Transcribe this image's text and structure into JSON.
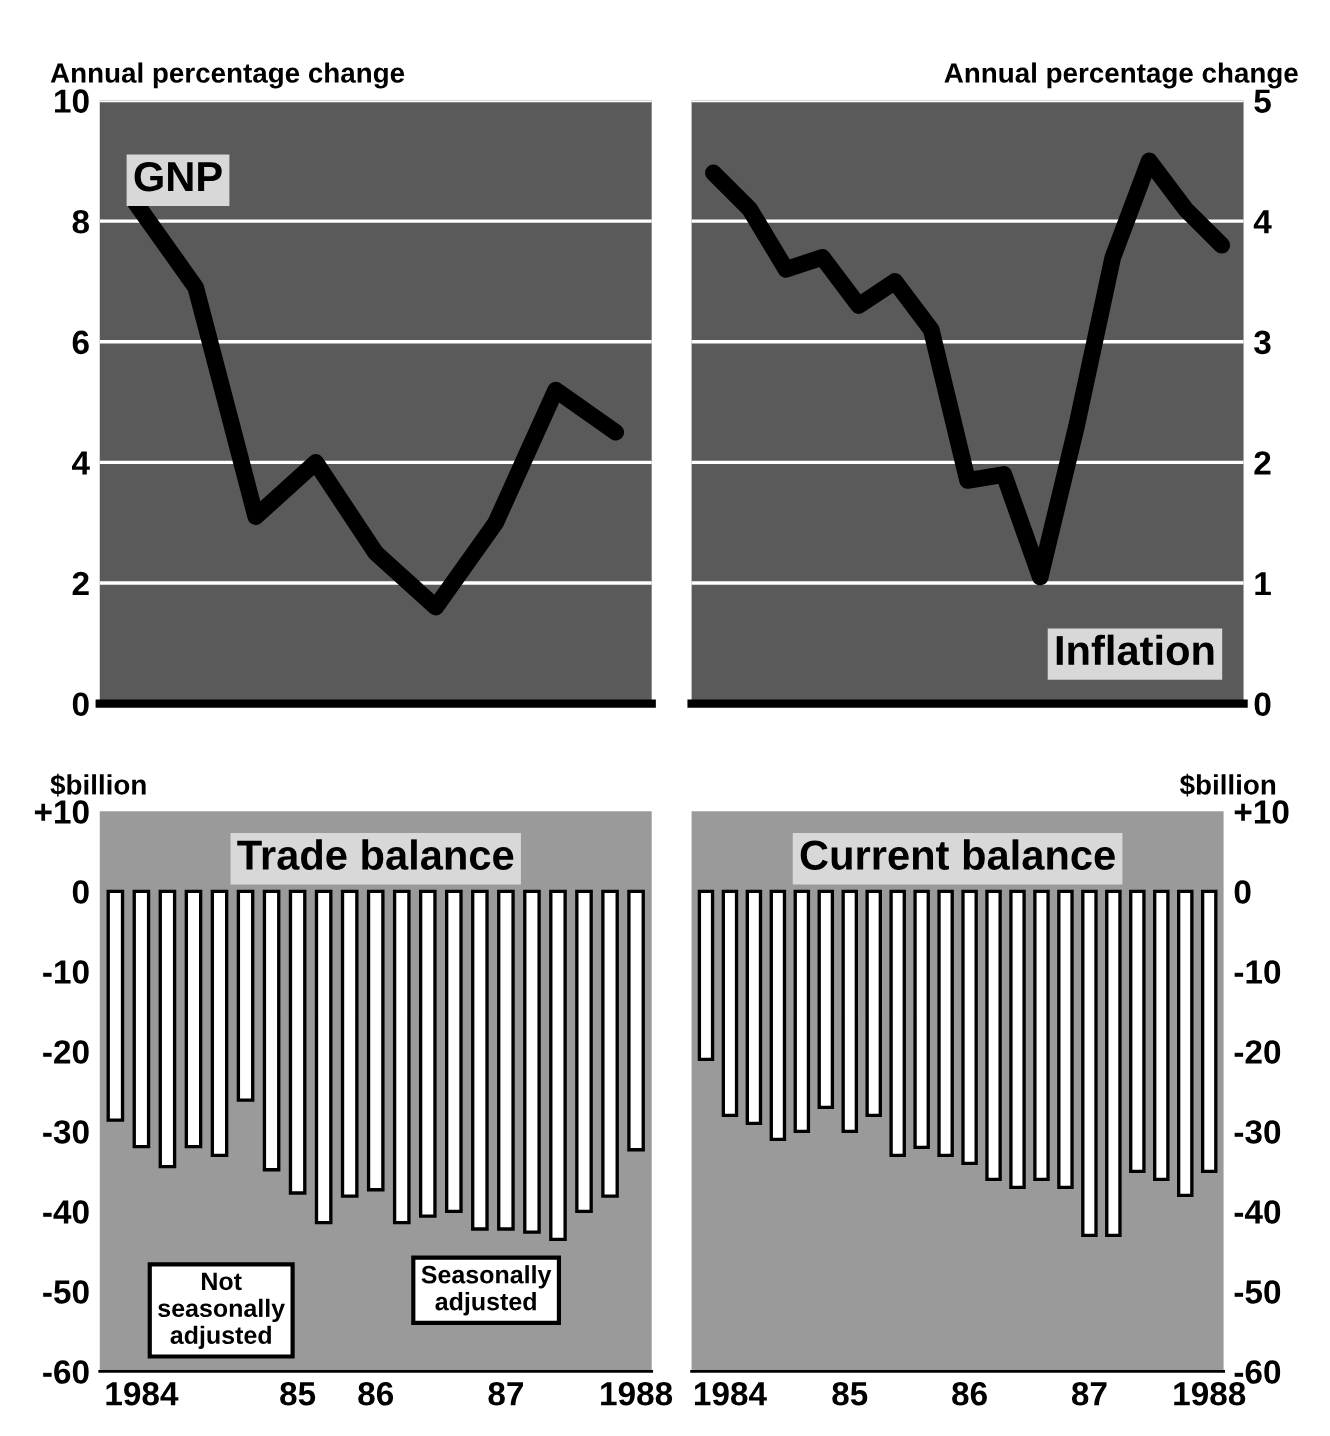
{
  "chart_data": [
    {
      "type": "line",
      "title": "GNP",
      "ylabel": "Annual percentage change",
      "categories": [
        null,
        null,
        null,
        null,
        null,
        null,
        null,
        null,
        null
      ],
      "series": [
        {
          "color": "#000000",
          "values": [
            8.3,
            6.9,
            3.1,
            4.0,
            2.5,
            1.6,
            3.0,
            5.2,
            4.5
          ]
        }
      ],
      "ylim": [
        0,
        10
      ],
      "yticks": [
        0,
        2,
        4,
        6,
        8,
        10
      ],
      "grid": "y",
      "tick_labels": "y"
    },
    {
      "type": "line",
      "title": "Inflation",
      "ylabel": "Annual percentage change",
      "categories": [
        null,
        null,
        null,
        null,
        null,
        null,
        null,
        null,
        null,
        null,
        null,
        null,
        null,
        null,
        null
      ],
      "series": [
        {
          "color": "#000000",
          "values": [
            4.4,
            4.1,
            3.6,
            3.7,
            3.3,
            3.5,
            3.1,
            1.85,
            1.9,
            1.05,
            2.3,
            3.7,
            4.5,
            4.1,
            3.8
          ]
        }
      ],
      "ylim": [
        0,
        5
      ],
      "yticks": [
        0,
        1,
        2,
        3,
        4,
        5
      ],
      "grid": "y",
      "tick_labels": "y"
    },
    {
      "type": "bar",
      "title": "Trade balance",
      "ylabel": "$billion",
      "categories": [
        null,
        "1984",
        null,
        null,
        null,
        null,
        null,
        "85",
        null,
        null,
        "86",
        null,
        null,
        null,
        null,
        "87",
        null,
        null,
        null,
        null,
        "1988"
      ],
      "series": [
        {
          "color": "#ffffff",
          "values": [
            -28.6,
            -31.9,
            -34.4,
            -31.9,
            -33,
            -26.1,
            -34.8,
            -37.7,
            -41.4,
            -38.1,
            -37.3,
            -41.4,
            -40.6,
            -40,
            -42.2,
            -42.2,
            -42.6,
            -43.5,
            -40,
            -38.1,
            -32.3
          ]
        }
      ],
      "ylim": [
        -60,
        10
      ],
      "yticks": [
        -60,
        -50,
        -40,
        -30,
        -20,
        -10,
        0,
        {
          "value": 10,
          "label": "+10"
        }
      ],
      "annotations": [
        "Not\nseasonally\nadjusted",
        "Seasonally\nadjusted"
      ]
    },
    {
      "type": "bar",
      "title": "Current balance",
      "ylabel": "$billion",
      "categories": [
        null,
        "1984",
        null,
        null,
        null,
        null,
        "85",
        null,
        null,
        null,
        null,
        "86",
        null,
        null,
        null,
        null,
        "87",
        null,
        null,
        null,
        null,
        "1988"
      ],
      "series": [
        {
          "color": "#ffffff",
          "values": [
            -21,
            -28,
            -29,
            -31,
            -30,
            -27,
            -30,
            -28,
            -33,
            -32,
            -33,
            -34,
            -36,
            -37,
            -36,
            -37,
            -43,
            -43,
            -35,
            -36,
            -38,
            -35
          ]
        }
      ],
      "ylim": [
        -60,
        10
      ],
      "yticks": [
        -60,
        -50,
        -40,
        -30,
        -20,
        -10,
        0,
        {
          "value": 10,
          "label": "+10"
        }
      ]
    }
  ]
}
